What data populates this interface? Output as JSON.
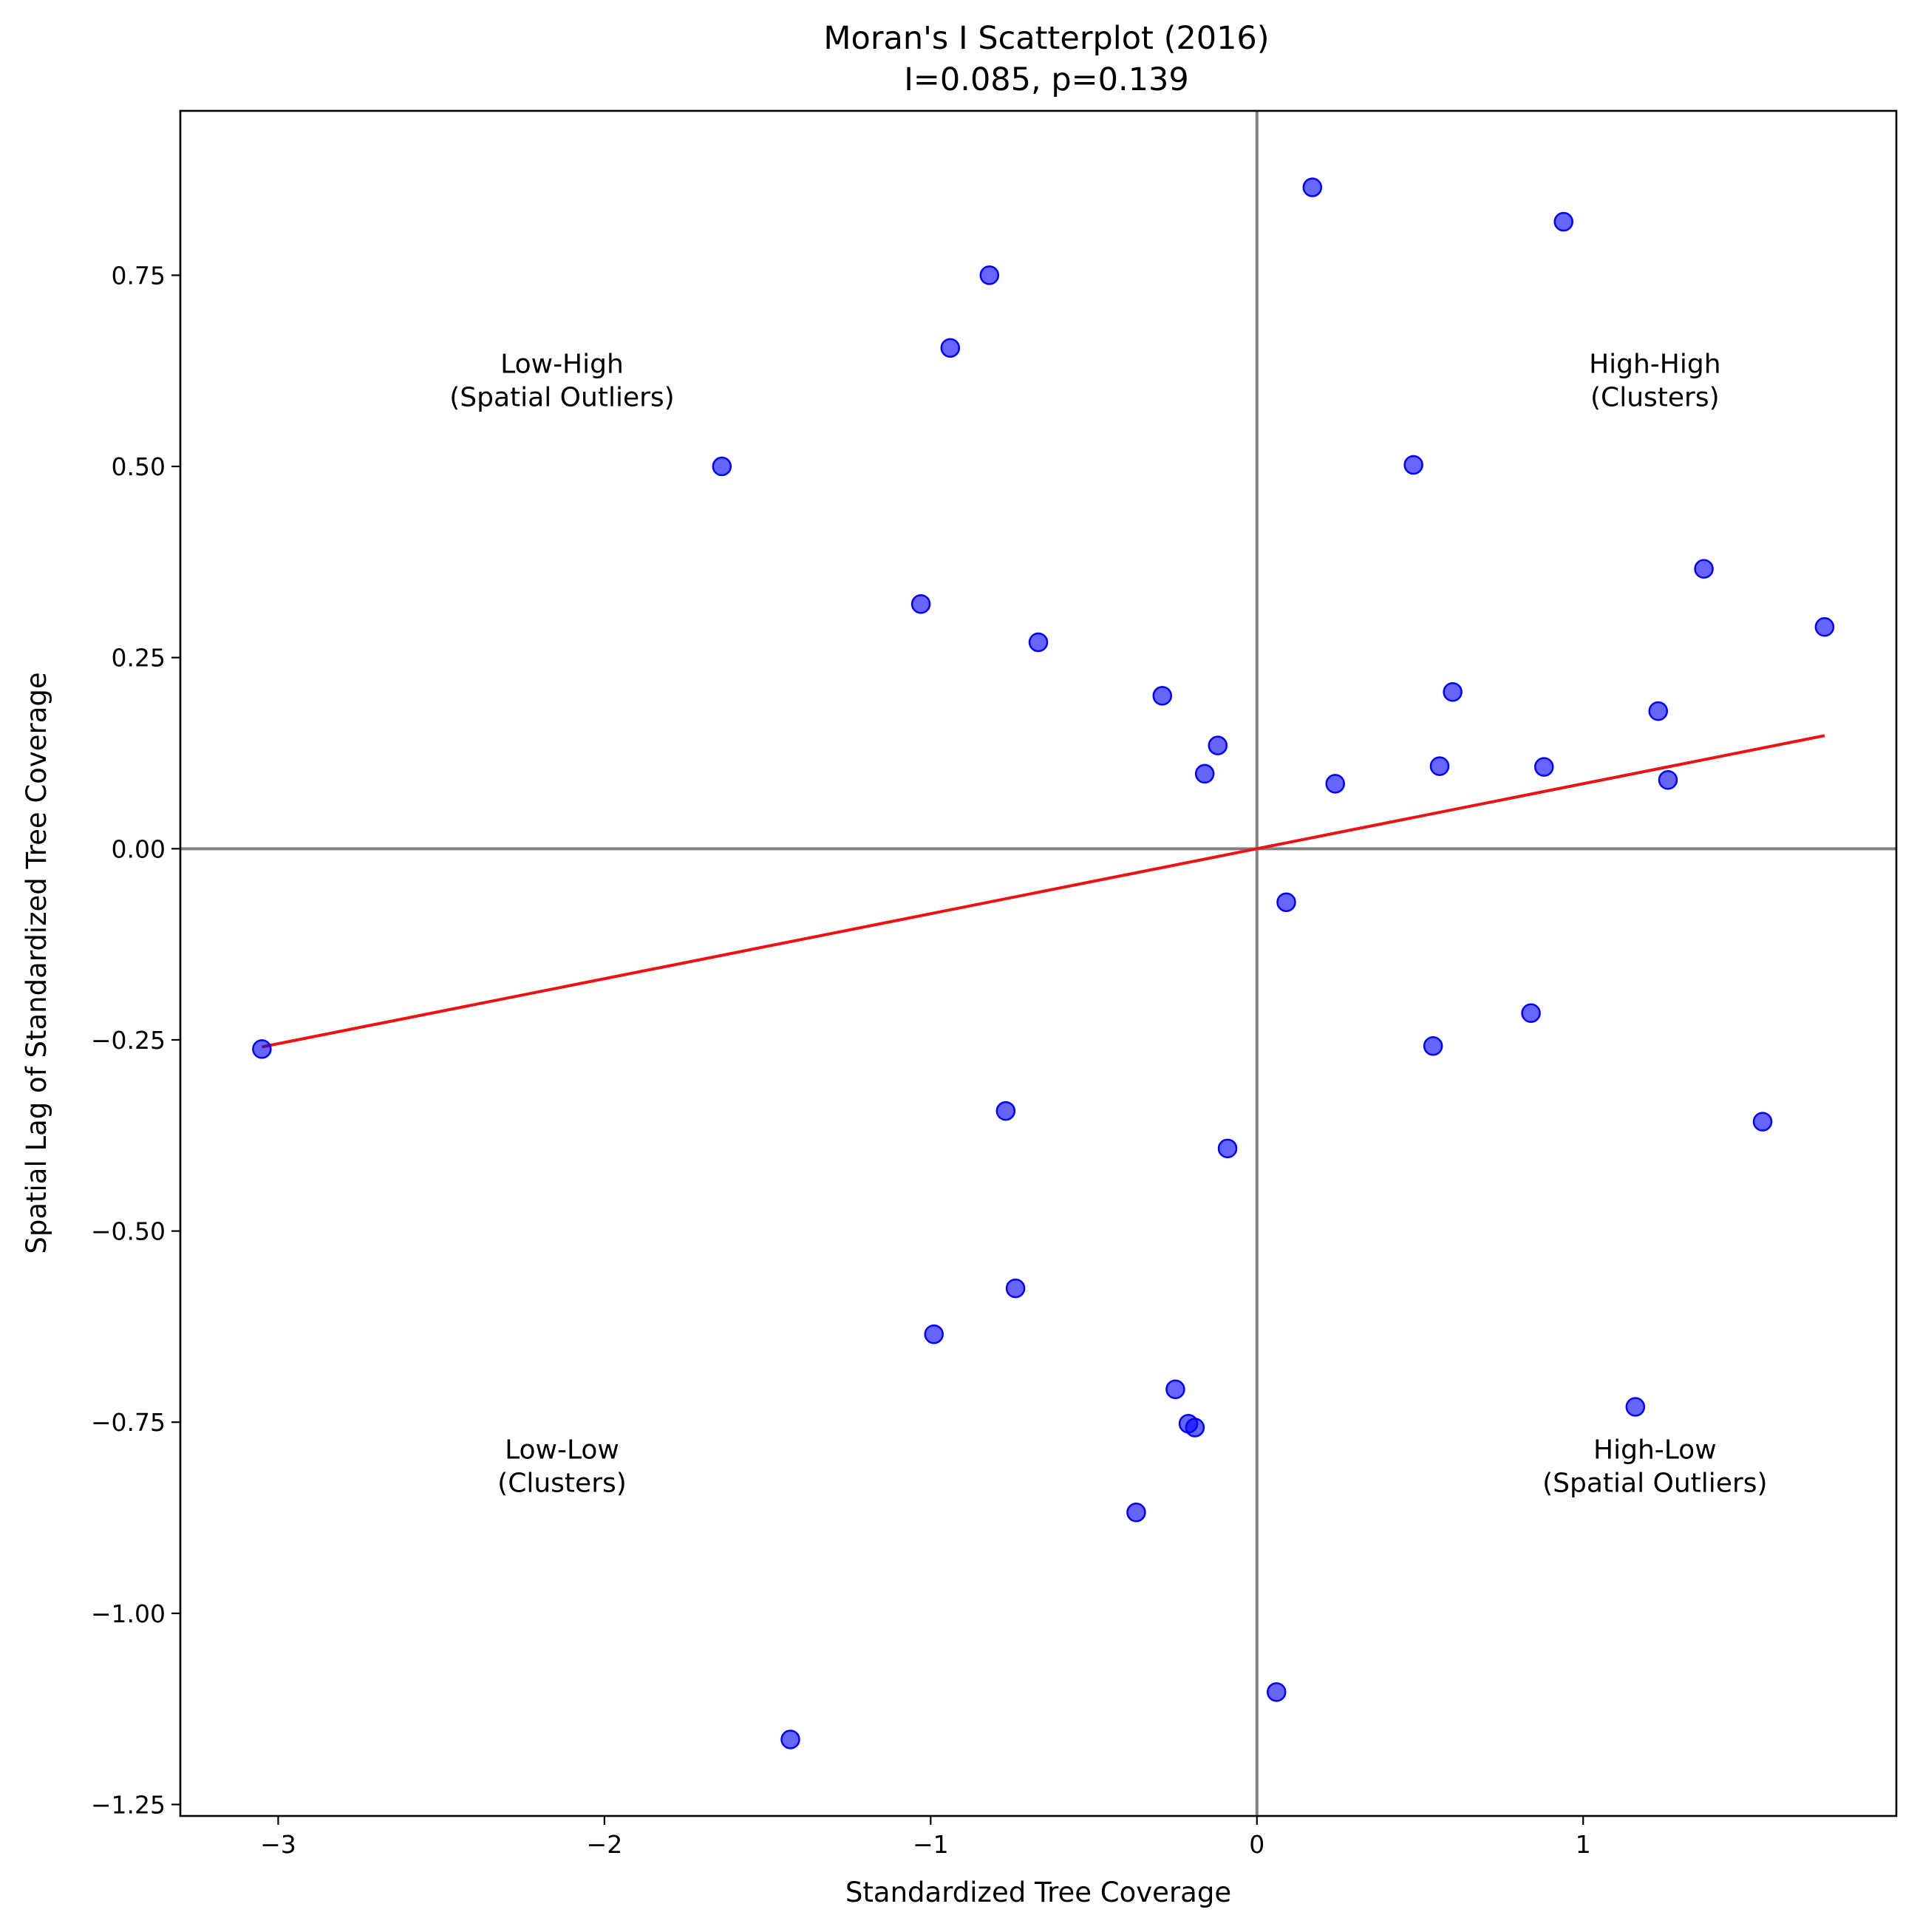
{
  "chart_data": {
    "type": "scatter",
    "title": "Moran's I Scatterplot (2016)",
    "subtitle": "I=0.085, p=0.139",
    "xlabel": "Standardized Tree Coverage",
    "ylabel": "Spatial Lag of Standardized Tree Coverage",
    "xlim": [
      -3.3,
      1.96
    ],
    "ylim": [
      -1.265,
      0.965
    ],
    "x_ticks": [
      -3,
      -2,
      -1,
      0,
      1
    ],
    "x_tick_labels": [
      "−3",
      "−2",
      "−1",
      "0",
      "1"
    ],
    "y_ticks": [
      0.75,
      0.5,
      0.25,
      0.0,
      -0.25,
      -0.5,
      -0.75,
      -1.0,
      -1.25
    ],
    "y_tick_labels": [
      "0.75",
      "0.50",
      "0.25",
      "0.00",
      "−0.25",
      "−0.50",
      "−0.75",
      "−1.00",
      "−1.25"
    ],
    "grid": false,
    "reference_lines": {
      "x": 0,
      "y": 0,
      "color": "#808080"
    },
    "points_color": "#0000ff",
    "regression_color": "#ee1111",
    "regression": {
      "slope": 0.085,
      "x_range": [
        -3.05,
        1.74
      ]
    },
    "quadrant_labels": [
      {
        "lines": [
          "Low-High",
          "(Spatial Outliers)"
        ],
        "x": -2.13,
        "y": 0.605
      },
      {
        "lines": [
          "High-High",
          "(Clusters)"
        ],
        "x": 1.22,
        "y": 0.605
      },
      {
        "lines": [
          "Low-Low",
          "(Clusters)"
        ],
        "x": -2.13,
        "y": -0.815
      },
      {
        "lines": [
          "High-Low",
          "(Spatial Outliers)"
        ],
        "x": 1.22,
        "y": -0.815
      }
    ],
    "points": [
      {
        "x": 0.17,
        "y": 0.865
      },
      {
        "x": 0.94,
        "y": 0.82
      },
      {
        "x": -0.82,
        "y": 0.75
      },
      {
        "x": -0.94,
        "y": 0.655
      },
      {
        "x": -1.64,
        "y": 0.5
      },
      {
        "x": 0.48,
        "y": 0.502
      },
      {
        "x": 1.37,
        "y": 0.366
      },
      {
        "x": -1.03,
        "y": 0.32
      },
      {
        "x": 1.74,
        "y": 0.29
      },
      {
        "x": -0.67,
        "y": 0.27
      },
      {
        "x": -0.29,
        "y": 0.2
      },
      {
        "x": 0.6,
        "y": 0.205
      },
      {
        "x": 1.23,
        "y": 0.18
      },
      {
        "x": -0.12,
        "y": 0.135
      },
      {
        "x": -0.16,
        "y": 0.098
      },
      {
        "x": 0.56,
        "y": 0.108
      },
      {
        "x": 0.88,
        "y": 0.107
      },
      {
        "x": 1.26,
        "y": 0.09
      },
      {
        "x": 0.24,
        "y": 0.085
      },
      {
        "x": 0.09,
        "y": -0.07
      },
      {
        "x": 0.84,
        "y": -0.215
      },
      {
        "x": 0.54,
        "y": -0.258
      },
      {
        "x": -3.05,
        "y": -0.262
      },
      {
        "x": -0.77,
        "y": -0.343
      },
      {
        "x": 1.55,
        "y": -0.357
      },
      {
        "x": -0.09,
        "y": -0.392
      },
      {
        "x": -0.74,
        "y": -0.575
      },
      {
        "x": -0.99,
        "y": -0.635
      },
      {
        "x": -0.25,
        "y": -0.707
      },
      {
        "x": 1.16,
        "y": -0.73
      },
      {
        "x": -0.21,
        "y": -0.752
      },
      {
        "x": -0.19,
        "y": -0.757
      },
      {
        "x": -0.37,
        "y": -0.868
      },
      {
        "x": 0.06,
        "y": -1.103
      },
      {
        "x": -1.43,
        "y": -1.165
      }
    ]
  }
}
